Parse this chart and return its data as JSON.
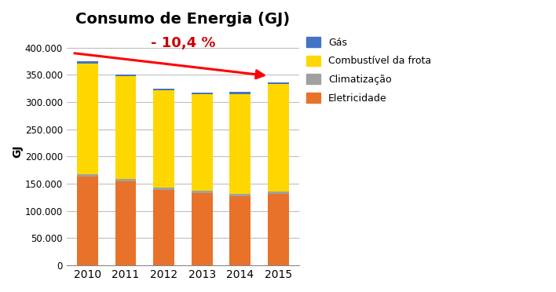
{
  "title": "Consumo de Energia (GJ)",
  "ylabel": "GJ",
  "years": [
    "2010",
    "2011",
    "2012",
    "2013",
    "2014",
    "2015"
  ],
  "eletricidade": [
    163000,
    155000,
    138000,
    133000,
    127000,
    132000
  ],
  "climatizacao": [
    5000,
    3000,
    5000,
    4000,
    4000,
    4000
  ],
  "combustivel": [
    203000,
    189000,
    179000,
    177000,
    184000,
    197000
  ],
  "gas": [
    4000,
    3000,
    3000,
    3000,
    3000,
    3000
  ],
  "color_eletricidade": "#E8722A",
  "color_climatizacao": "#A0A0A0",
  "color_combustivel": "#FFD700",
  "color_gas": "#4472C4",
  "annotation_text": "- 10,4 %",
  "annotation_color": "#CC0000",
  "ylim": [
    0,
    420000
  ],
  "yticks": [
    0,
    50000,
    100000,
    150000,
    200000,
    250000,
    300000,
    350000,
    400000
  ],
  "ytick_labels": [
    "0",
    "50.000",
    "100.000",
    "150.000",
    "200.000",
    "250.000",
    "300.000",
    "350.000",
    "400.000"
  ],
  "background_color": "#FFFFFF",
  "grid_color": "#BEBEBE"
}
